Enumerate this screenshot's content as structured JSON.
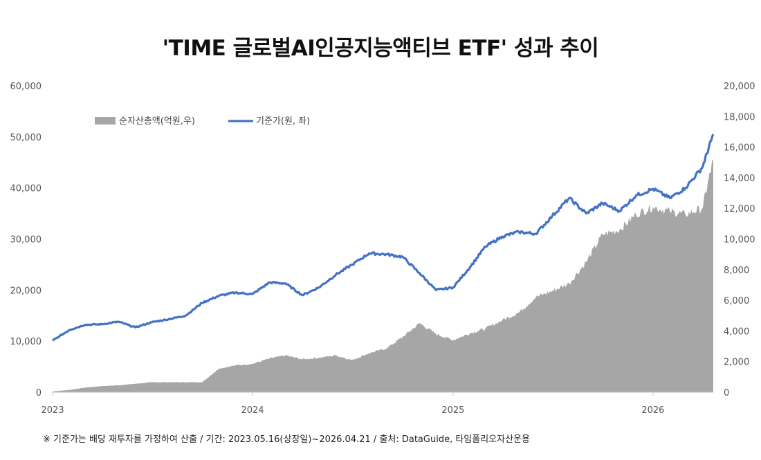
{
  "chart_data": {
    "type": "line",
    "title": "'TIME 글로벌AI인공지능액티브 ETF' 성과 추이",
    "footnote": "※ 기준가는 배당 재투자를 가정하여 산출 / 기간: 2023.05.16(상장일)~2026.04.21 / 출처: DataGuide, 타임폴리오자산운용",
    "left_axis": {
      "min": 0,
      "max": 60000,
      "ticks": [
        "0",
        "10,000",
        "20,000",
        "30,000",
        "40,000",
        "50,000",
        "60,000"
      ]
    },
    "right_axis": {
      "min": 0,
      "max": 20000,
      "ticks": [
        "0",
        "2,000",
        "4,000",
        "6,000",
        "8,000",
        "10,000",
        "12,000",
        "14,000",
        "16,000",
        "18,000",
        "20,000"
      ]
    },
    "x_axis": {
      "ticks": [
        "2023",
        "2024",
        "2025",
        "2026"
      ],
      "range": [
        "2023-01-01",
        "2026-04-21"
      ]
    },
    "legend_position": "top-left",
    "grid": false,
    "colors": {
      "area": "#a6a6a6",
      "line": "#4472c4"
    },
    "series": [
      {
        "name": "순자산총액(억원,우)",
        "type": "area",
        "axis": "right",
        "x": [
          "2023-01-01",
          "2023-02-01",
          "2023-03-01",
          "2023-04-01",
          "2023-05-01",
          "2023-06-01",
          "2023-07-01",
          "2023-08-01",
          "2023-09-01",
          "2023-10-01",
          "2023-11-01",
          "2023-12-01",
          "2024-01-01",
          "2024-02-01",
          "2024-03-01",
          "2024-04-01",
          "2024-05-01",
          "2024-06-01",
          "2024-07-01",
          "2024-08-01",
          "2024-09-01",
          "2024-10-01",
          "2024-11-01",
          "2024-12-01",
          "2025-01-01",
          "2025-02-01",
          "2025-03-01",
          "2025-04-01",
          "2025-05-01",
          "2025-06-01",
          "2025-07-01",
          "2025-08-01",
          "2025-09-01",
          "2025-10-01",
          "2025-11-01",
          "2025-12-01",
          "2026-01-01",
          "2026-02-01",
          "2026-03-01",
          "2026-04-01",
          "2026-04-21"
        ],
        "values": [
          50,
          150,
          300,
          400,
          450,
          550,
          650,
          650,
          650,
          650,
          1550,
          1750,
          1850,
          2200,
          2400,
          2150,
          2250,
          2400,
          2100,
          2550,
          2850,
          3600,
          4500,
          3800,
          3400,
          3850,
          4150,
          4700,
          5200,
          6200,
          6600,
          7100,
          8500,
          10300,
          10600,
          11600,
          12100,
          11800,
          11600,
          12000,
          15200
        ]
      },
      {
        "name": "기준가(원, 좌)",
        "type": "line",
        "axis": "left",
        "x": [
          "2023-01-01",
          "2023-02-01",
          "2023-03-01",
          "2023-04-01",
          "2023-05-01",
          "2023-06-01",
          "2023-07-01",
          "2023-08-01",
          "2023-09-01",
          "2023-10-01",
          "2023-11-01",
          "2023-12-01",
          "2024-01-01",
          "2024-02-01",
          "2024-03-01",
          "2024-04-01",
          "2024-05-01",
          "2024-06-01",
          "2024-07-01",
          "2024-08-01",
          "2024-09-01",
          "2024-10-01",
          "2024-11-01",
          "2024-12-01",
          "2025-01-01",
          "2025-02-01",
          "2025-03-01",
          "2025-04-01",
          "2025-05-01",
          "2025-06-01",
          "2025-07-01",
          "2025-08-01",
          "2025-09-01",
          "2025-10-01",
          "2025-11-01",
          "2025-12-01",
          "2026-01-01",
          "2026-02-01",
          "2026-03-01",
          "2026-04-01",
          "2026-04-21"
        ],
        "values": [
          10100,
          12200,
          13200,
          13300,
          13800,
          12700,
          13700,
          14300,
          15000,
          17500,
          18900,
          19500,
          19200,
          21500,
          21300,
          19000,
          20500,
          23000,
          25000,
          27200,
          27000,
          26500,
          23300,
          20000,
          20500,
          24500,
          28500,
          30500,
          31400,
          31000,
          34500,
          38000,
          35000,
          37000,
          35500,
          38500,
          39800,
          38000,
          40000,
          44000,
          50500
        ]
      }
    ]
  }
}
